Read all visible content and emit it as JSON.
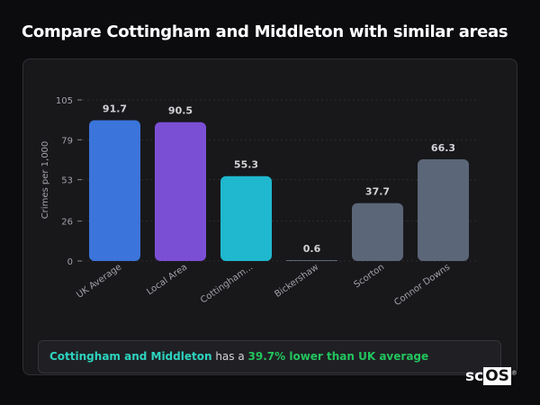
{
  "title": "Compare Cottingham and Middleton with similar areas",
  "chart_data": {
    "type": "bar",
    "title": "",
    "xlabel": "",
    "ylabel": "Crimes per 1,000",
    "ylim": [
      0,
      105
    ],
    "yticks": [
      0,
      26,
      53,
      79,
      105
    ],
    "grid": true,
    "categories": [
      "UK Average",
      "Local Area",
      "Cottingham...",
      "Bickershaw",
      "Scorton",
      "Connor Downs"
    ],
    "values": [
      91.7,
      90.5,
      55.3,
      0.6,
      37.7,
      66.3
    ],
    "value_labels": [
      "91.7",
      "90.5",
      "55.3",
      "0.6",
      "37.7",
      "66.3"
    ],
    "colors": [
      "#3b74db",
      "#7b4fd4",
      "#1fb8cf",
      "#5b6678",
      "#5b6678",
      "#5b6678"
    ]
  },
  "summary": {
    "area": "Cottingham and Middleton",
    "middle": " has a ",
    "comparison": "39.7% lower than UK average"
  },
  "logo": {
    "text1": "sc",
    "text2": "OS",
    "mark": "®"
  }
}
